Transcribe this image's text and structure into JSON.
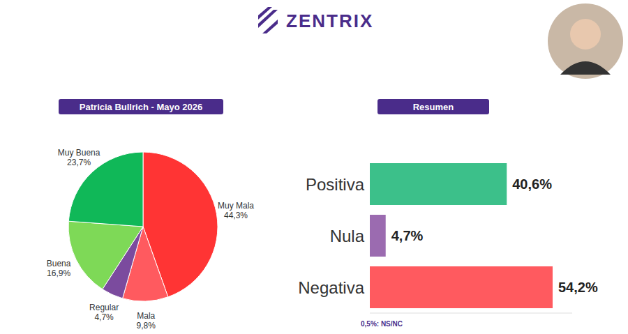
{
  "header": {
    "logo": "ZENTRIX"
  },
  "chart_data": [
    {
      "type": "pie",
      "title": "Patricia Bullrich - Mayo 2026",
      "categories": [
        "Muy Mala",
        "Mala",
        "Regular",
        "Buena",
        "Muy Buena"
      ],
      "values": [
        44.3,
        9.8,
        4.7,
        16.9,
        23.7
      ],
      "value_labels": [
        "44,3%",
        "9,8%",
        "4,7%",
        "16,9%",
        "23,7%"
      ],
      "colors": [
        "#ff3434",
        "#ff5a5f",
        "#7b4b9e",
        "#7ed957",
        "#10b858"
      ],
      "data_labels": true
    },
    {
      "type": "bar",
      "title": "Resumen",
      "orientation": "horizontal",
      "categories": [
        "Positiva",
        "Nula",
        "Negativa"
      ],
      "values": [
        40.6,
        4.7,
        54.2
      ],
      "value_labels": [
        "40,6%",
        "4,7%",
        "54,2%"
      ],
      "colors": [
        "#3cc08a",
        "#9b6bb0",
        "#ff5a5f"
      ],
      "xlim": [
        0,
        60
      ],
      "tick_labels": "y",
      "data_labels": true,
      "annotations": [
        "0,5%: NS/NC"
      ]
    }
  ]
}
